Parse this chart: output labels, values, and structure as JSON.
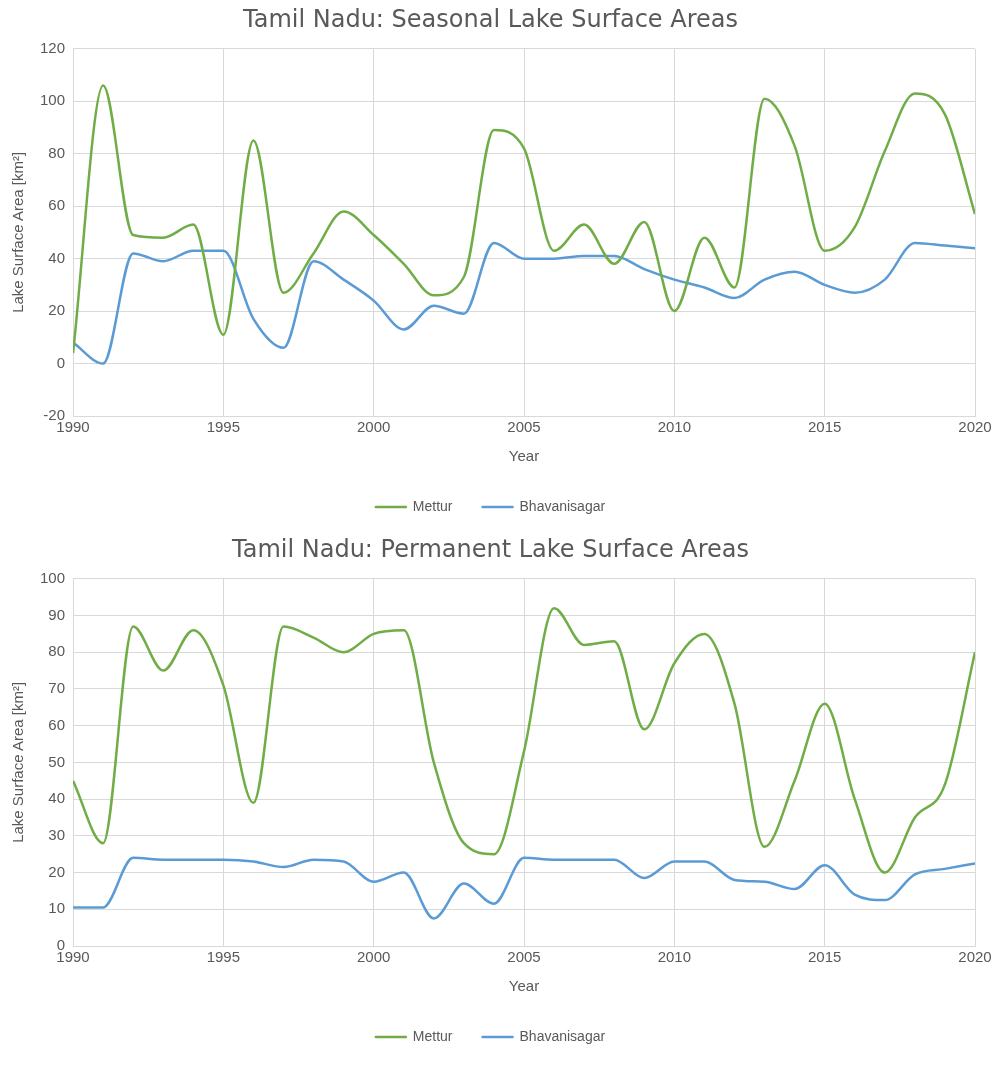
{
  "chart_data": [
    {
      "type": "line",
      "title": "Tamil Nadu: Seasonal Lake Surface Areas",
      "xlabel": "Year",
      "ylabel": "Lake Surface Area [km²]",
      "x": [
        1990,
        1991,
        1992,
        1993,
        1994,
        1995,
        1996,
        1997,
        1998,
        1999,
        2000,
        2001,
        2002,
        2003,
        2004,
        2005,
        2006,
        2007,
        2008,
        2009,
        2010,
        2011,
        2012,
        2013,
        2014,
        2015,
        2016,
        2017,
        2018,
        2019,
        2020
      ],
      "series": [
        {
          "name": "Mettur",
          "color": "#70ad47",
          "values": [
            4,
            106,
            49,
            48,
            53,
            11,
            85,
            27,
            42,
            58,
            49,
            38,
            26,
            33,
            89,
            82,
            43,
            53,
            38,
            54,
            20,
            48,
            29,
            101,
            83,
            43,
            52,
            81,
            103,
            95,
            57
          ]
        },
        {
          "name": "Bhavanisagar",
          "color": "#5b9bd5",
          "values": [
            8,
            0,
            42,
            39,
            43,
            43,
            17,
            6,
            39,
            32,
            24,
            13,
            22,
            19,
            46,
            40,
            40,
            41,
            41,
            36,
            32,
            29,
            25,
            32,
            35,
            30,
            27,
            32,
            46,
            45,
            44
          ]
        }
      ],
      "xlim": [
        1990,
        2020
      ],
      "xticks": [
        1990,
        1995,
        2000,
        2005,
        2010,
        2015,
        2020
      ],
      "ylim": [
        -20,
        120
      ],
      "yticks": [
        -20,
        0,
        20,
        40,
        60,
        80,
        100,
        120
      ],
      "grid": true,
      "legend": "bottom",
      "marker": "none",
      "line_style": "solid"
    },
    {
      "type": "line",
      "title": "Tamil Nadu: Permanent Lake Surface Areas",
      "xlabel": "Year",
      "ylabel": "Lake Surface Area [km²]",
      "x": [
        1990,
        1991,
        1992,
        1993,
        1994,
        1995,
        1996,
        1997,
        1998,
        1999,
        2000,
        2001,
        2002,
        2003,
        2004,
        2005,
        2006,
        2007,
        2008,
        2009,
        2010,
        2011,
        2012,
        2013,
        2014,
        2015,
        2016,
        2017,
        2018,
        2019,
        2020
      ],
      "series": [
        {
          "name": "Mettur",
          "color": "#70ad47",
          "values": [
            45,
            28,
            87,
            75,
            86,
            71,
            39,
            87,
            84,
            80,
            85,
            86,
            50,
            28,
            25,
            53,
            92,
            82,
            83,
            59,
            77,
            85,
            66,
            27,
            45,
            66,
            40,
            20,
            35,
            44,
            80
          ]
        },
        {
          "name": "Bhavanisagar",
          "color": "#5b9bd5",
          "values": [
            10.5,
            10.5,
            24,
            23.5,
            23.5,
            23.5,
            23,
            21.5,
            23.5,
            23,
            17.5,
            20,
            7.5,
            17,
            11.5,
            24,
            23.5,
            23.5,
            23.5,
            18.5,
            23,
            23,
            18,
            17.5,
            15.5,
            22,
            14,
            12.5,
            19.5,
            21,
            22.5
          ]
        }
      ],
      "xlim": [
        1990,
        2020
      ],
      "xticks": [
        1990,
        1995,
        2000,
        2005,
        2010,
        2015,
        2020
      ],
      "ylim": [
        0,
        100
      ],
      "yticks": [
        0,
        10,
        20,
        30,
        40,
        50,
        60,
        70,
        80,
        90,
        100
      ],
      "grid": true,
      "legend": "bottom",
      "marker": "none",
      "line_style": "solid"
    }
  ]
}
